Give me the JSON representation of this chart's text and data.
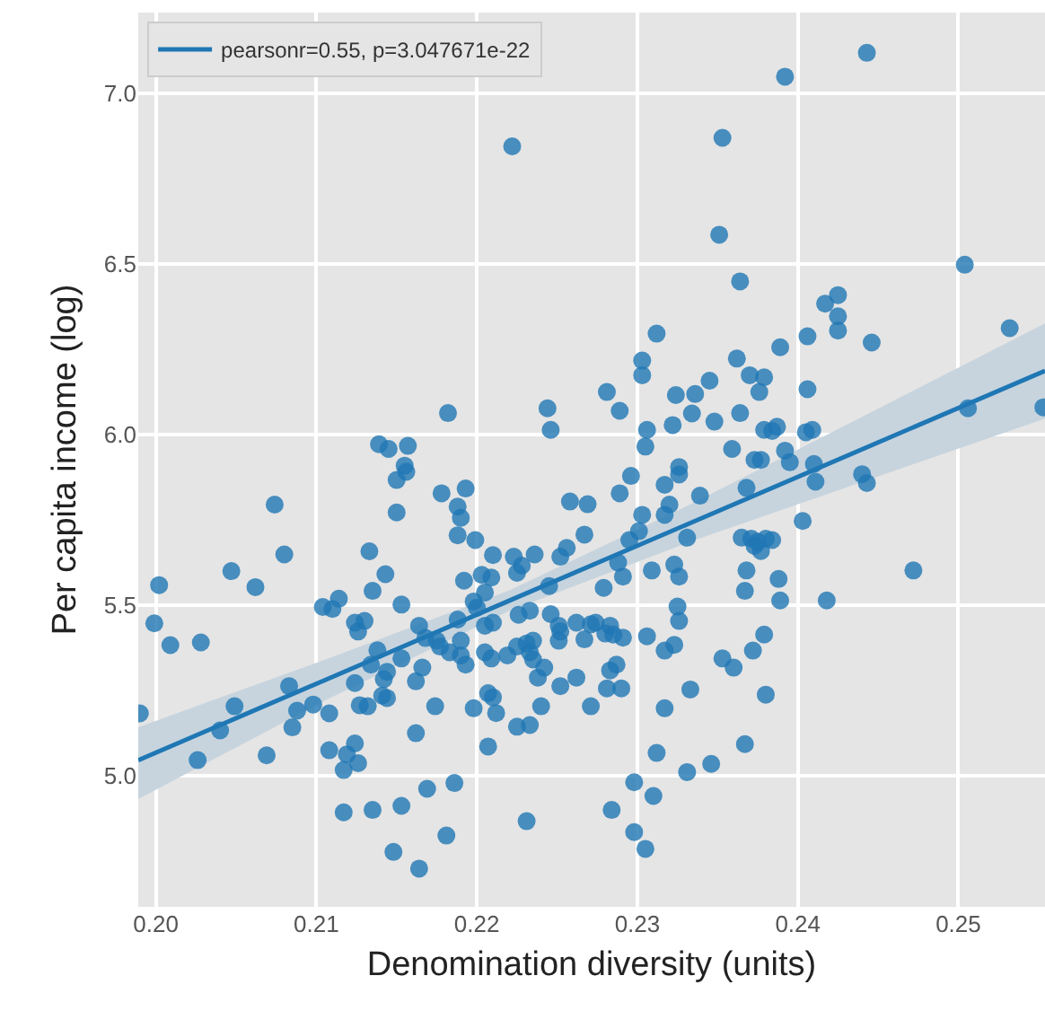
{
  "chart_data": {
    "type": "scatter",
    "xlabel": "Denomination diversity (units)",
    "ylabel": "Per capita income (log)",
    "xlim": [
      0.1989,
      0.2554
    ],
    "ylim": [
      4.616,
      7.237
    ],
    "xticks": [
      {
        "value": 0.2,
        "label": "0.20"
      },
      {
        "value": 0.21,
        "label": "0.21"
      },
      {
        "value": 0.22,
        "label": "0.22"
      },
      {
        "value": 0.23,
        "label": "0.23"
      },
      {
        "value": 0.24,
        "label": "0.24"
      },
      {
        "value": 0.25,
        "label": "0.25"
      }
    ],
    "yticks": [
      {
        "value": 5.0,
        "label": "5.0"
      },
      {
        "value": 5.5,
        "label": "5.5"
      },
      {
        "value": 6.0,
        "label": "6.0"
      },
      {
        "value": 6.5,
        "label": "6.5"
      },
      {
        "value": 7.0,
        "label": "7.0"
      }
    ],
    "grid": true,
    "legend": "top left",
    "marker": "circle",
    "series": [
      {
        "type": "scatter",
        "color": "#1f77b4",
        "x": [
          0.2222,
          0.2182,
          0.2244,
          0.2246,
          0.2139,
          0.2145,
          0.2157,
          0.2155,
          0.2443,
          0.2392,
          0.2353,
          0.2351,
          0.2504,
          0.2364,
          0.2417,
          0.2425,
          0.2425,
          0.2425,
          0.2446,
          0.2532,
          0.2312,
          0.2406,
          0.2389,
          0.2303,
          0.2303,
          0.2362,
          0.2281,
          0.2289,
          0.2324,
          0.2336,
          0.2345,
          0.237,
          0.2379,
          0.2376,
          0.2406,
          0.2334,
          0.2348,
          0.2364,
          0.2322,
          0.2306,
          0.2305,
          0.2506,
          0.2379,
          0.2384,
          0.2387,
          0.2405,
          0.2409,
          0.2359,
          0.2392,
          0.2373,
          0.2377,
          0.2326,
          0.241,
          0.2553,
          0.215,
          0.2156,
          0.215,
          0.2178,
          0.2193,
          0.2188,
          0.219,
          0.2188,
          0.2199,
          0.2074,
          0.208,
          0.2047,
          0.2062,
          0.2002,
          0.1999,
          0.2009,
          0.2028,
          0.199,
          0.2133,
          0.2143,
          0.2135,
          0.2153,
          0.2104,
          0.211,
          0.2114,
          0.2124,
          0.213,
          0.2126,
          0.2164,
          0.2168,
          0.2175,
          0.2138,
          0.2153,
          0.2134,
          0.2144,
          0.2142,
          0.2166,
          0.2162,
          0.2124,
          0.2083,
          0.2049,
          0.204,
          0.2026,
          0.2069,
          0.2085,
          0.2088,
          0.2098,
          0.2108,
          0.2127,
          0.2132,
          0.2141,
          0.2144,
          0.2174,
          0.2162,
          0.2108,
          0.2124,
          0.2119,
          0.2126,
          0.2117,
          0.2117,
          0.2135,
          0.2153,
          0.2169,
          0.2186,
          0.2148,
          0.2164,
          0.2181,
          0.2231,
          0.2207,
          0.2198,
          0.2207,
          0.2212,
          0.221,
          0.2225,
          0.2233,
          0.224,
          0.2252,
          0.2262,
          0.2238,
          0.2242,
          0.2233,
          0.2235,
          0.2231,
          0.2235,
          0.2225,
          0.2219,
          0.2209,
          0.2205,
          0.2193,
          0.219,
          0.2183,
          0.2177,
          0.219,
          0.2251,
          0.2252,
          0.2267,
          0.2262,
          0.2271,
          0.2251,
          0.2246,
          0.2233,
          0.2226,
          0.2245,
          0.221,
          0.2205,
          0.22,
          0.2198,
          0.2205,
          0.2203,
          0.2209,
          0.2192,
          0.2188,
          0.221,
          0.2223,
          0.2225,
          0.2236,
          0.2228,
          0.2252,
          0.2256,
          0.2267,
          0.2258,
          0.2269,
          0.2271,
          0.2395,
          0.2411,
          0.244,
          0.2443,
          0.2296,
          0.2289,
          0.2317,
          0.2326,
          0.2339,
          0.232,
          0.2317,
          0.2303,
          0.2301,
          0.2295,
          0.2331,
          0.2368,
          0.2403,
          0.2365,
          0.2371,
          0.2375,
          0.238,
          0.2384,
          0.2377,
          0.2373,
          0.2472,
          0.2368,
          0.2367,
          0.2388,
          0.2389,
          0.2418,
          0.2288,
          0.2291,
          0.2309,
          0.2323,
          0.2326,
          0.2279,
          0.2325,
          0.2326,
          0.2274,
          0.2283,
          0.2285,
          0.2291,
          0.2306,
          0.228,
          0.2317,
          0.2323,
          0.2379,
          0.2372,
          0.2353,
          0.236,
          0.2287,
          0.2283,
          0.2281,
          0.229,
          0.2333,
          0.2317,
          0.238,
          0.2367,
          0.2312,
          0.2331,
          0.2346,
          0.2298,
          0.231,
          0.2284,
          0.2298,
          0.2305
        ],
        "values": [
          6.845,
          6.063,
          6.077,
          6.014,
          5.972,
          5.958,
          5.967,
          5.909,
          7.119,
          7.049,
          6.87,
          6.586,
          6.498,
          6.449,
          6.384,
          6.409,
          6.347,
          6.305,
          6.27,
          6.312,
          6.296,
          6.288,
          6.256,
          6.217,
          6.174,
          6.223,
          6.125,
          6.07,
          6.116,
          6.119,
          6.158,
          6.174,
          6.168,
          6.125,
          6.133,
          6.062,
          6.038,
          6.063,
          6.028,
          6.014,
          5.965,
          6.077,
          6.014,
          6.011,
          6.023,
          6.007,
          6.014,
          5.958,
          5.953,
          5.926,
          5.926,
          5.905,
          5.914,
          6.08,
          5.867,
          5.891,
          5.772,
          5.828,
          5.842,
          5.789,
          5.756,
          5.705,
          5.691,
          5.795,
          5.649,
          5.6,
          5.553,
          5.559,
          5.447,
          5.383,
          5.391,
          5.183,
          5.658,
          5.591,
          5.542,
          5.502,
          5.495,
          5.489,
          5.519,
          5.449,
          5.454,
          5.423,
          5.44,
          5.404,
          5.396,
          5.368,
          5.344,
          5.326,
          5.305,
          5.283,
          5.317,
          5.277,
          5.272,
          5.263,
          5.204,
          5.133,
          5.046,
          5.06,
          5.142,
          5.191,
          5.209,
          5.183,
          5.207,
          5.204,
          5.235,
          5.228,
          5.204,
          5.125,
          5.075,
          5.095,
          5.063,
          5.037,
          5.017,
          4.893,
          4.9,
          4.912,
          4.962,
          4.979,
          4.777,
          4.728,
          4.825,
          4.867,
          5.086,
          5.198,
          5.242,
          5.184,
          5.23,
          5.144,
          5.149,
          5.204,
          5.263,
          5.288,
          5.288,
          5.317,
          5.362,
          5.341,
          5.388,
          5.396,
          5.379,
          5.353,
          5.344,
          5.362,
          5.326,
          5.353,
          5.362,
          5.379,
          5.396,
          5.396,
          5.423,
          5.4,
          5.449,
          5.444,
          5.44,
          5.474,
          5.484,
          5.472,
          5.556,
          5.449,
          5.44,
          5.493,
          5.511,
          5.537,
          5.589,
          5.581,
          5.572,
          5.458,
          5.647,
          5.642,
          5.595,
          5.649,
          5.616,
          5.642,
          5.668,
          5.707,
          5.804,
          5.796,
          5.204,
          5.919,
          5.862,
          5.884,
          5.858,
          5.879,
          5.828,
          5.853,
          5.883,
          5.821,
          5.795,
          5.765,
          5.765,
          5.717,
          5.691,
          5.698,
          5.844,
          5.747,
          5.698,
          5.695,
          5.686,
          5.695,
          5.691,
          5.659,
          5.674,
          5.602,
          5.602,
          5.542,
          5.577,
          5.514,
          5.514,
          5.625,
          5.584,
          5.602,
          5.619,
          5.584,
          5.551,
          5.496,
          5.454,
          5.449,
          5.44,
          5.414,
          5.405,
          5.409,
          5.417,
          5.367,
          5.384,
          5.414,
          5.367,
          5.344,
          5.317,
          5.326,
          5.309,
          5.256,
          5.256,
          5.253,
          5.198,
          5.238,
          5.093,
          5.067,
          5.011,
          5.035,
          4.981,
          4.941,
          4.9,
          4.835,
          4.786
        ]
      },
      {
        "type": "line",
        "name": "pearsonr=0.55, p=3.047671e-22",
        "color": "#1f77b4",
        "line_style": "solid",
        "marker": "none",
        "x": [
          0.1989,
          0.2105,
          0.222,
          0.2335,
          0.2554
        ],
        "values": [
          5.046,
          5.28,
          5.513,
          5.745,
          6.187
        ],
        "lower": [
          4.932,
          5.22,
          5.483,
          5.69,
          6.047
        ],
        "upper": [
          5.142,
          5.34,
          5.543,
          5.8,
          6.326
        ]
      }
    ]
  }
}
